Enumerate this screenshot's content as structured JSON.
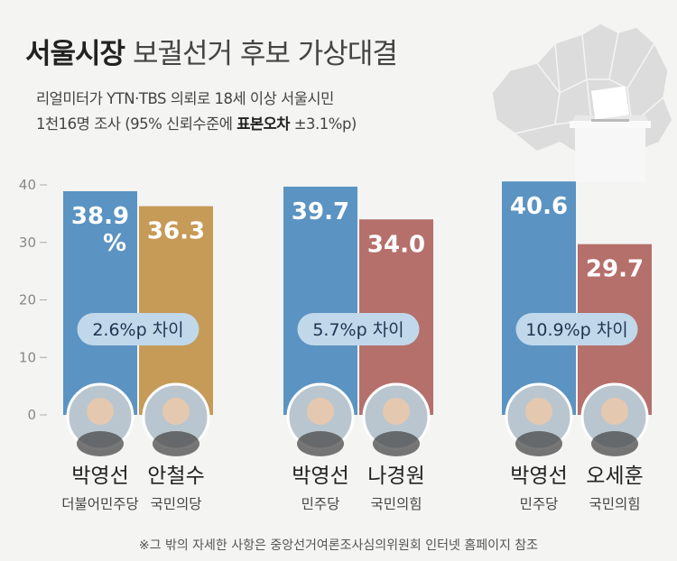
{
  "header": {
    "title_bold": "서울시장",
    "title_rest": "보궐선거 후보 가상대결",
    "subtitle_line1": "리얼미터가 YTN·TBS 의뢰로 18세 이상 서울시민",
    "subtitle_line2_prefix": "1천16명 조사 (95% 신뢰수준에 ",
    "subtitle_line2_bold": "표본오차",
    "subtitle_line2_suffix": " ±3.1%p)"
  },
  "footnote": "※그 밖의 자세한 사항은 중앙선거여론조사심의위원회 인터넷 홈페이지 참조",
  "chart_data": {
    "type": "bar",
    "ylim": [
      0,
      40
    ],
    "yticks": [
      "0",
      "10",
      "20",
      "30",
      "40"
    ],
    "colors": {
      "blue": "#5b93c2",
      "orange": "#c69a57",
      "pink": "#b5706c",
      "pill": "#c0d8ea",
      "avatar_bg": "#b9c6cf"
    },
    "groups": [
      {
        "gap_label": "2.6%p 차이",
        "bars": [
          {
            "name": "박영선",
            "party": "더불어민주당",
            "value": 38.9,
            "value_label": "38.9",
            "unit_label": "%",
            "color": "blue"
          },
          {
            "name": "안철수",
            "party": "국민의당",
            "value": 36.3,
            "value_label": "36.3",
            "color": "orange"
          }
        ]
      },
      {
        "gap_label": "5.7%p 차이",
        "bars": [
          {
            "name": "박영선",
            "party": "민주당",
            "value": 39.7,
            "value_label": "39.7",
            "color": "blue"
          },
          {
            "name": "나경원",
            "party": "국민의힘",
            "value": 34.0,
            "value_label": "34.0",
            "color": "pink"
          }
        ]
      },
      {
        "gap_label": "10.9%p 차이",
        "bars": [
          {
            "name": "박영선",
            "party": "민주당",
            "value": 40.6,
            "value_label": "40.6",
            "color": "blue"
          },
          {
            "name": "오세훈",
            "party": "국민의힘",
            "value": 29.7,
            "value_label": "29.7",
            "color": "pink"
          }
        ]
      }
    ]
  }
}
